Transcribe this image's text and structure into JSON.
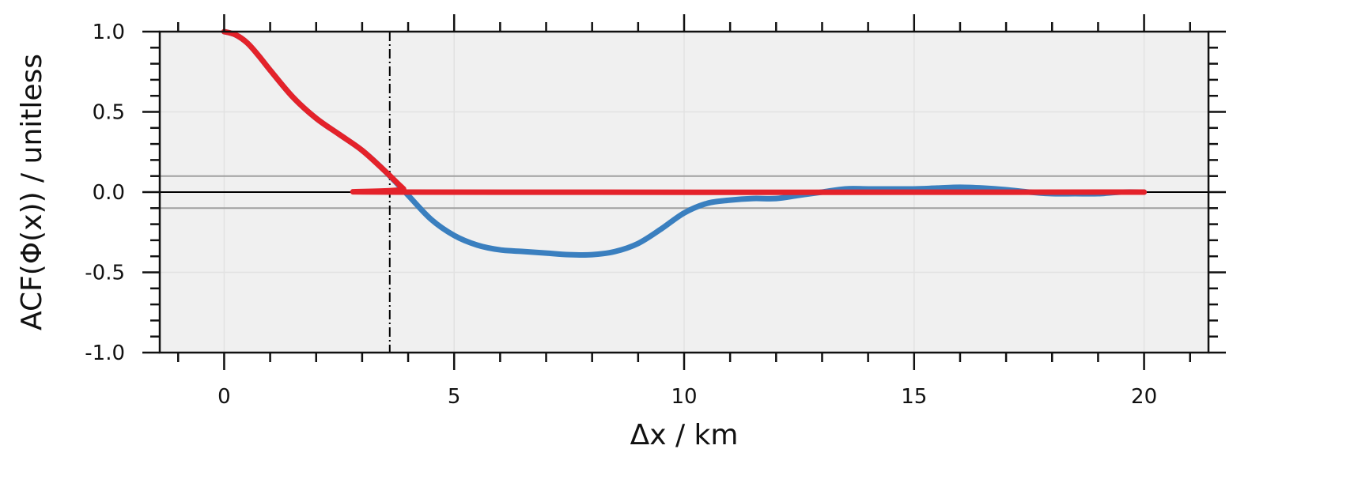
{
  "chart_data": {
    "type": "line",
    "title": "",
    "xlabel": "Δx / km",
    "ylabel": "ACF(Φ(x))  / unitless",
    "xlim": [
      -1.4,
      21.4
    ],
    "ylim": [
      -1.0,
      1.0
    ],
    "grid": true,
    "background": "#f0f0f0",
    "xticks": [
      0,
      5,
      10,
      15,
      20
    ],
    "xtick_labels": [
      "0",
      "5",
      "10",
      "15",
      "20"
    ],
    "yticks": [
      1.0,
      0.5,
      0.0,
      -0.5,
      -1.0
    ],
    "ytick_labels": [
      "1.0",
      "0.5",
      "0.0",
      "-0.5",
      "-1.0"
    ],
    "reference_lines": {
      "zero": {
        "y": 0.0,
        "color": "#000000"
      },
      "band": {
        "y": [
          0.1,
          -0.1
        ],
        "color": "#a0a0a0"
      },
      "vertical": {
        "x": 3.6,
        "color": "#000000",
        "style": "dash-dot"
      }
    },
    "series": [
      {
        "color": "#3a7fbf",
        "x": [
          0,
          0.25,
          0.5,
          0.75,
          1,
          1.5,
          2,
          2.5,
          3,
          3.5,
          4,
          4.5,
          5,
          5.5,
          6,
          6.5,
          7,
          7.5,
          8,
          8.5,
          9,
          9.5,
          10,
          10.5,
          11,
          11.5,
          12,
          12.5,
          13,
          13.5,
          14,
          14.5,
          15,
          15.5,
          16,
          16.5,
          17,
          17.5,
          18,
          18.5,
          19,
          19.5,
          20
        ],
        "y": [
          1.0,
          0.98,
          0.93,
          0.85,
          0.76,
          0.59,
          0.46,
          0.36,
          0.26,
          0.13,
          -0.02,
          -0.17,
          -0.27,
          -0.33,
          -0.36,
          -0.37,
          -0.38,
          -0.39,
          -0.39,
          -0.37,
          -0.32,
          -0.23,
          -0.13,
          -0.07,
          -0.05,
          -0.04,
          -0.04,
          -0.02,
          0.0,
          0.02,
          0.02,
          0.02,
          0.02,
          0.025,
          0.03,
          0.025,
          0.015,
          0.0,
          -0.01,
          -0.01,
          -0.01,
          0.0,
          0.0
        ]
      },
      {
        "color": "#e4222a",
        "x": [
          0,
          0.25,
          0.5,
          0.75,
          1,
          1.5,
          2,
          2.5,
          3,
          3.5,
          3.9,
          4.0,
          20
        ],
        "y": [
          1.0,
          0.98,
          0.93,
          0.85,
          0.76,
          0.59,
          0.46,
          0.36,
          0.26,
          0.13,
          0.02,
          0.0,
          0.0
        ]
      }
    ]
  }
}
